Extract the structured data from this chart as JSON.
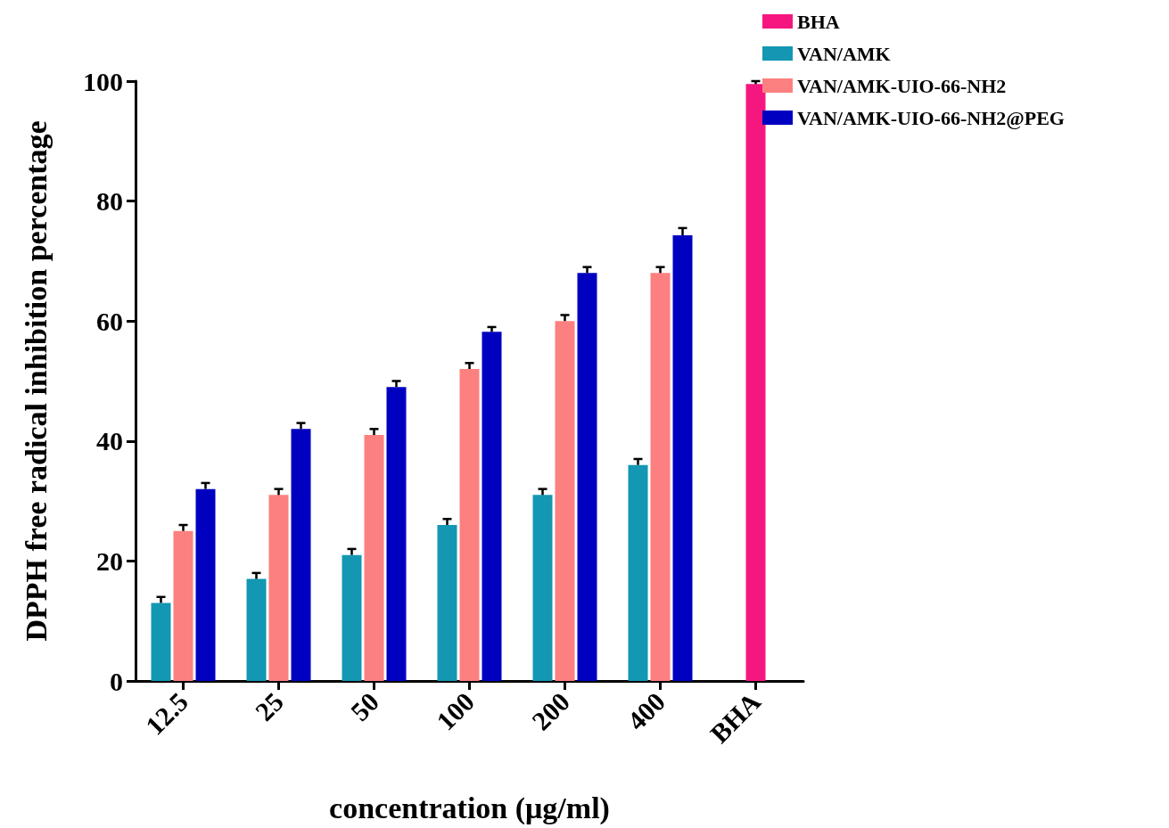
{
  "chart_data": {
    "type": "bar",
    "xlabel": "concentration (μg/ml)",
    "ylabel": "DPPH free radical inhibition percentage",
    "categories": [
      "12.5",
      "25",
      "50",
      "100",
      "200",
      "400",
      "BHA"
    ],
    "series": [
      {
        "name": "BHA",
        "color": "#f5177f",
        "values": [
          null,
          null,
          null,
          null,
          null,
          null,
          99.5
        ],
        "errors": [
          null,
          null,
          null,
          null,
          null,
          null,
          0.5
        ]
      },
      {
        "name": "VAN/AMK",
        "color": "#1397b3",
        "values": [
          13,
          17,
          21,
          26,
          31,
          36,
          null
        ],
        "errors": [
          1,
          1,
          1,
          1,
          1,
          1,
          null
        ]
      },
      {
        "name": "VAN/AMK-UIO-66-NH2",
        "color": "#fc8080",
        "values": [
          25,
          31,
          41,
          52,
          60,
          68,
          null
        ],
        "errors": [
          1,
          1,
          1,
          1,
          1,
          1,
          null
        ]
      },
      {
        "name": "VAN/AMK-UIO-66-NH2@PEG",
        "color": "#0000c0",
        "values": [
          32,
          42,
          49,
          58.2,
          68,
          74.3,
          null
        ],
        "errors": [
          1,
          1,
          1,
          0.8,
          1,
          1.2,
          null
        ]
      }
    ],
    "ylim": [
      0,
      100
    ],
    "yticks": [
      0,
      20,
      40,
      60,
      80,
      100
    ],
    "grid": false,
    "legend": "top right"
  }
}
